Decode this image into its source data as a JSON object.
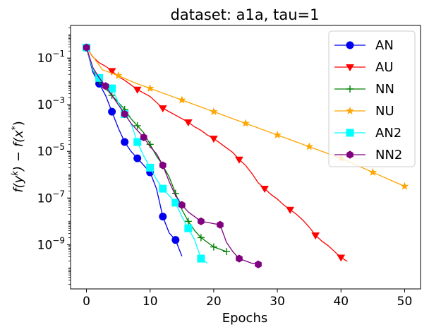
{
  "chart_data": {
    "type": "line",
    "title": "dataset: a1a, tau=1",
    "xlabel": "Epochs",
    "ylabel_main": "f(y",
    "ylabel_sup1": "k",
    "ylabel_mid": ") − f(x",
    "ylabel_sup2": "*",
    "ylabel_end": ")",
    "xscale": "linear",
    "yscale": "log",
    "xlim": [
      -2.5,
      52.5
    ],
    "ylim_exp": [
      -10.9,
      0.4
    ],
    "x_ticks": [
      0,
      10,
      20,
      30,
      40,
      50
    ],
    "x_tick_labels": [
      "0",
      "10",
      "20",
      "30",
      "40",
      "50"
    ],
    "y_ticks_exp": [
      -9,
      -7,
      -5,
      -3,
      -1
    ],
    "y_tick_base": "10",
    "y_tick_exps": [
      "−9",
      "−7",
      "−5",
      "−3",
      "−1"
    ],
    "legend_position": "top-right",
    "series": [
      {
        "name": "AN",
        "color": "#0000ee",
        "marker": "circle",
        "x": [
          0,
          1,
          2,
          3,
          4,
          5,
          6,
          7,
          8,
          9,
          10,
          11,
          12,
          13,
          14,
          15
        ],
        "logy": [
          -0.55,
          -1.6,
          -2.1,
          -2.6,
          -3.3,
          -4.0,
          -4.6,
          -5.0,
          -5.3,
          -5.6,
          -5.9,
          -6.6,
          -7.8,
          -8.5,
          -8.8,
          -9.5
        ],
        "markers_every": 2
      },
      {
        "name": "AU",
        "color": "#ff0000",
        "marker": "triangle-down",
        "x": [
          0,
          1,
          2,
          3,
          4,
          5,
          6,
          7,
          8,
          9,
          10,
          11,
          12,
          13,
          14,
          15,
          16,
          17,
          18,
          19,
          20,
          21,
          22,
          23,
          24,
          25,
          26,
          27,
          28,
          29,
          30,
          31,
          32,
          33,
          34,
          35,
          36,
          37,
          38,
          39,
          40,
          41
        ],
        "logy": [
          -0.55,
          -0.95,
          -1.2,
          -1.35,
          -1.55,
          -1.8,
          -1.95,
          -2.15,
          -2.35,
          -2.5,
          -2.65,
          -2.9,
          -3.15,
          -3.3,
          -3.45,
          -3.6,
          -3.75,
          -3.95,
          -4.1,
          -4.3,
          -4.45,
          -4.65,
          -4.85,
          -5.05,
          -5.35,
          -5.6,
          -5.95,
          -6.35,
          -6.6,
          -6.85,
          -7.05,
          -7.3,
          -7.5,
          -7.7,
          -7.95,
          -8.25,
          -8.6,
          -8.85,
          -9.05,
          -9.3,
          -9.55,
          -9.72
        ],
        "markers_every": 4
      },
      {
        "name": "NN",
        "color": "#008000",
        "marker": "plus",
        "x": [
          0,
          1,
          2,
          3,
          4,
          5,
          6,
          7,
          8,
          9,
          10,
          11,
          12,
          13,
          14,
          15,
          16,
          17,
          18,
          19,
          20,
          21,
          22
        ],
        "logy": [
          -0.55,
          -1.5,
          -2.0,
          -2.3,
          -2.6,
          -2.9,
          -3.2,
          -3.6,
          -3.9,
          -4.2,
          -4.7,
          -5.2,
          -5.6,
          -6.1,
          -6.8,
          -7.5,
          -8.0,
          -8.4,
          -8.7,
          -8.9,
          -9.1,
          -9.2,
          -9.3
        ],
        "markers_every": 2
      },
      {
        "name": "NU",
        "color": "#ffa500",
        "marker": "star",
        "x": [
          0,
          2.5,
          5,
          7.5,
          10,
          12.5,
          15,
          17.5,
          20,
          22.5,
          25,
          27.5,
          30,
          32.5,
          35,
          37.5,
          40,
          42.5,
          45,
          47.5,
          50
        ],
        "logy": [
          -0.55,
          -1.5,
          -1.75,
          -2.05,
          -2.3,
          -2.55,
          -2.8,
          -3.05,
          -3.3,
          -3.55,
          -3.8,
          -4.05,
          -4.3,
          -4.55,
          -4.8,
          -5.05,
          -5.3,
          -5.6,
          -5.9,
          -6.2,
          -6.5
        ],
        "markers_every": 2
      },
      {
        "name": "AN2",
        "color": "#00ffff",
        "marker": "square",
        "x": [
          0,
          1,
          2,
          3,
          4,
          5,
          6,
          7,
          8,
          9,
          10,
          11,
          12,
          13,
          14,
          15,
          16,
          17,
          18,
          19
        ],
        "logy": [
          -0.55,
          -1.5,
          -1.85,
          -2.2,
          -2.3,
          -2.9,
          -3.4,
          -3.8,
          -4.6,
          -5.2,
          -5.7,
          -6.2,
          -6.6,
          -6.9,
          -7.2,
          -7.8,
          -8.3,
          -8.8,
          -9.6,
          -9.8
        ],
        "markers_every": 2
      },
      {
        "name": "NN2",
        "color": "#800080",
        "marker": "hexagon",
        "x": [
          0,
          1,
          2,
          3,
          4,
          5,
          6,
          7,
          8,
          9,
          10,
          11,
          12,
          13,
          14,
          15,
          16,
          17,
          18,
          19,
          20,
          21,
          22,
          23,
          24,
          25,
          26,
          27
        ],
        "logy": [
          -0.55,
          -1.4,
          -1.85,
          -2.2,
          -2.6,
          -3.0,
          -3.4,
          -3.8,
          -4.1,
          -4.4,
          -4.8,
          -5.1,
          -5.6,
          -6.3,
          -6.9,
          -7.3,
          -7.6,
          -7.8,
          -8.0,
          -8.05,
          -8.1,
          -8.15,
          -8.9,
          -9.3,
          -9.6,
          -9.7,
          -9.8,
          -9.85
        ],
        "markers_every": 3
      }
    ]
  }
}
